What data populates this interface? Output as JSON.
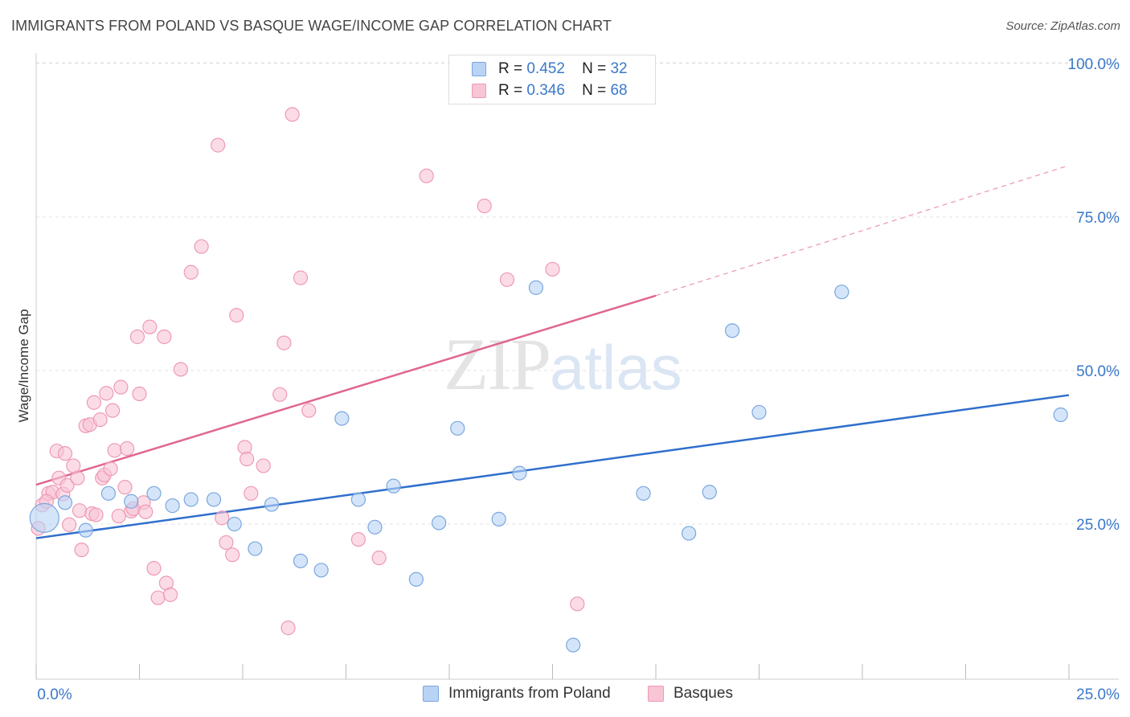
{
  "chart_data": {
    "type": "scatter",
    "title": "IMMIGRANTS FROM POLAND VS BASQUE WAGE/INCOME GAP CORRELATION CHART",
    "source": "Source: ZipAtlas.com",
    "xlabel": "",
    "ylabel": "Wage/Income Gap",
    "xlim": [
      0,
      25
    ],
    "ylim": [
      0,
      105
    ],
    "x_tick_labels": [
      "0.0%",
      "25.0%"
    ],
    "y_ticks": [
      25,
      50,
      75,
      100
    ],
    "y_tick_labels": [
      "25.0%",
      "50.0%",
      "75.0%",
      "100.0%"
    ],
    "watermark": {
      "zip": "ZIP",
      "atlas": "atlas"
    },
    "legend": [
      {
        "r_label": "R =",
        "r_value": "0.452",
        "n_label": "N =",
        "n_value": "32"
      },
      {
        "r_label": "R =",
        "r_value": "0.346",
        "n_label": "N =",
        "n_value": "68"
      }
    ],
    "colors": {
      "blue_fill": "#b9d3f5",
      "blue_stroke": "#7aa7e0",
      "blue_line": "#2f6fcc",
      "pink_fill": "#f8c5d5",
      "pink_stroke": "#ee9ab4",
      "pink_line": "#e0678f",
      "tick_label": "#3a78c9",
      "grid": "#e3e3e3"
    },
    "series": [
      {
        "name": "Immigrants from Poland",
        "trend": {
          "x0": 0,
          "y0": 22.7,
          "x1": 25,
          "y1": 46.0
        },
        "points": [
          [
            0.2,
            26.0,
            "large"
          ],
          [
            0.7,
            28.5
          ],
          [
            1.2,
            24.0
          ],
          [
            1.75,
            30.0
          ],
          [
            2.3,
            28.7
          ],
          [
            2.85,
            30.0
          ],
          [
            3.3,
            28.0
          ],
          [
            3.75,
            29.0
          ],
          [
            4.3,
            29.0
          ],
          [
            4.8,
            25.0
          ],
          [
            5.3,
            21.0
          ],
          [
            5.7,
            28.2
          ],
          [
            6.4,
            19.0
          ],
          [
            6.9,
            17.5
          ],
          [
            7.4,
            42.2
          ],
          [
            7.8,
            29.0
          ],
          [
            8.2,
            24.5
          ],
          [
            8.65,
            31.2
          ],
          [
            9.2,
            16.0
          ],
          [
            9.75,
            25.2
          ],
          [
            10.2,
            40.6
          ],
          [
            11.2,
            25.8
          ],
          [
            11.7,
            33.3
          ],
          [
            12.1,
            63.5
          ],
          [
            13.0,
            5.3
          ],
          [
            14.7,
            30.0
          ],
          [
            15.8,
            23.5
          ],
          [
            16.3,
            30.2
          ],
          [
            16.85,
            56.5
          ],
          [
            17.5,
            43.2
          ],
          [
            19.5,
            62.8
          ],
          [
            24.8,
            42.8
          ]
        ]
      },
      {
        "name": "Basques",
        "trend": {
          "x0": 0,
          "y0": 31.4,
          "x1": 15,
          "y1": 62.2,
          "x1_dashed": 25,
          "y1_dashed": 83.4
        },
        "points": [
          [
            0.05,
            24.3
          ],
          [
            0.15,
            28.1
          ],
          [
            0.3,
            30.0
          ],
          [
            0.4,
            30.2
          ],
          [
            0.5,
            36.9
          ],
          [
            0.55,
            32.5
          ],
          [
            0.65,
            29.9
          ],
          [
            0.7,
            36.5
          ],
          [
            0.75,
            31.3
          ],
          [
            0.8,
            24.9
          ],
          [
            0.9,
            34.5
          ],
          [
            1.0,
            32.5
          ],
          [
            1.05,
            27.2
          ],
          [
            1.1,
            20.8
          ],
          [
            1.2,
            41.0
          ],
          [
            1.3,
            41.2
          ],
          [
            1.35,
            26.7
          ],
          [
            1.4,
            44.8
          ],
          [
            1.45,
            26.5
          ],
          [
            1.55,
            42.0
          ],
          [
            1.6,
            32.5
          ],
          [
            1.65,
            33.0
          ],
          [
            1.7,
            46.3
          ],
          [
            1.8,
            34.0
          ],
          [
            1.85,
            43.5
          ],
          [
            1.9,
            37.0
          ],
          [
            2.0,
            26.3
          ],
          [
            2.05,
            47.3
          ],
          [
            2.15,
            31.0
          ],
          [
            2.2,
            37.3
          ],
          [
            2.3,
            27.1
          ],
          [
            2.35,
            27.5
          ],
          [
            2.45,
            55.5
          ],
          [
            2.5,
            46.2
          ],
          [
            2.6,
            28.5
          ],
          [
            2.65,
            27.0
          ],
          [
            2.75,
            57.1
          ],
          [
            2.85,
            17.8
          ],
          [
            2.95,
            13.0
          ],
          [
            3.1,
            55.5
          ],
          [
            3.15,
            15.4
          ],
          [
            3.25,
            13.5
          ],
          [
            3.5,
            50.2
          ],
          [
            3.75,
            66.0
          ],
          [
            4.0,
            70.2
          ],
          [
            4.4,
            86.7
          ],
          [
            4.5,
            26.0
          ],
          [
            4.6,
            22.0
          ],
          [
            4.75,
            20.0
          ],
          [
            4.85,
            59.0
          ],
          [
            5.05,
            37.5
          ],
          [
            5.1,
            35.6
          ],
          [
            5.2,
            30.0
          ],
          [
            5.5,
            34.5
          ],
          [
            5.9,
            46.1
          ],
          [
            6.0,
            54.5
          ],
          [
            6.1,
            8.1
          ],
          [
            6.2,
            91.7
          ],
          [
            6.4,
            65.1
          ],
          [
            6.6,
            43.5
          ],
          [
            7.8,
            22.5
          ],
          [
            8.3,
            19.5
          ],
          [
            9.45,
            81.7
          ],
          [
            10.85,
            76.8
          ],
          [
            11.4,
            64.8
          ],
          [
            12.5,
            66.5
          ],
          [
            13.1,
            12.0
          ],
          [
            0.25,
            28.7
          ]
        ]
      }
    ]
  }
}
